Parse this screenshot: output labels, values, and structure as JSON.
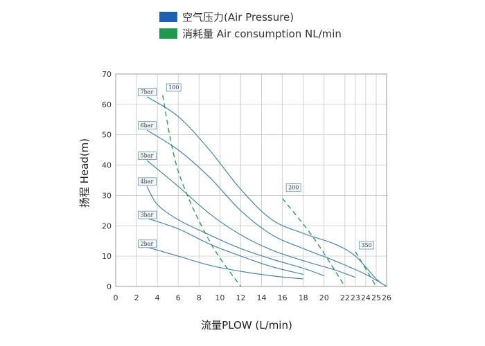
{
  "legend": [
    {
      "label": "空气压力(Air Pressure)",
      "color": "#2060b0"
    },
    {
      "label": "消耗量 Air consumption NL/min",
      "color": "#1e9a50"
    }
  ],
  "chart_data": {
    "type": "line",
    "xlabel": "流量PLOW (L/min)",
    "ylabel": "扬程 Head(m)",
    "xlim": [
      0,
      26
    ],
    "ylim": [
      0,
      70
    ],
    "xticks": [
      0,
      2,
      4,
      6,
      8,
      10,
      12,
      14,
      16,
      18,
      20,
      22,
      23,
      24,
      25,
      26
    ],
    "yticks": [
      0,
      10,
      20,
      30,
      40,
      50,
      60,
      70
    ],
    "grid": true,
    "series": [
      {
        "name": "7bar",
        "kind": "pressure",
        "color": "#4a86a8",
        "points": [
          [
            3,
            62.5
          ],
          [
            6,
            56
          ],
          [
            9,
            45
          ],
          [
            12,
            32
          ],
          [
            15,
            22
          ],
          [
            18,
            17.5
          ],
          [
            21,
            14
          ],
          [
            23,
            10
          ],
          [
            25,
            2.5
          ],
          [
            26,
            0
          ]
        ]
      },
      {
        "name": "6bar",
        "kind": "pressure",
        "color": "#4a86a8",
        "points": [
          [
            3,
            51.5
          ],
          [
            6,
            45
          ],
          [
            9,
            36
          ],
          [
            12,
            25
          ],
          [
            15,
            17
          ],
          [
            18,
            12.5
          ],
          [
            21,
            8.5
          ],
          [
            24,
            4
          ],
          [
            26,
            0
          ]
        ]
      },
      {
        "name": "5bar",
        "kind": "pressure",
        "color": "#4a86a8",
        "points": [
          [
            3,
            41.5
          ],
          [
            6,
            33
          ],
          [
            9,
            24
          ],
          [
            12,
            17
          ],
          [
            15,
            12
          ],
          [
            18,
            8.5
          ],
          [
            21,
            5.5
          ],
          [
            23,
            3
          ]
        ]
      },
      {
        "name": "4bar",
        "kind": "pressure",
        "color": "#4a86a8",
        "points": [
          [
            3,
            33
          ],
          [
            4,
            27
          ],
          [
            6,
            22
          ],
          [
            9,
            17
          ],
          [
            12,
            12.5
          ],
          [
            15,
            9
          ],
          [
            18,
            6
          ],
          [
            20,
            3.5
          ]
        ]
      },
      {
        "name": "3bar",
        "kind": "pressure",
        "color": "#4a86a8",
        "points": [
          [
            3,
            22.5
          ],
          [
            6,
            19
          ],
          [
            9,
            14
          ],
          [
            12,
            10
          ],
          [
            15,
            6.5
          ],
          [
            18,
            4
          ]
        ]
      },
      {
        "name": "2bar",
        "kind": "pressure",
        "color": "#4a86a8",
        "points": [
          [
            3,
            13
          ],
          [
            6,
            10
          ],
          [
            9,
            7
          ],
          [
            12,
            5
          ],
          [
            15,
            3.5
          ],
          [
            18,
            2.5
          ]
        ]
      },
      {
        "name": "100",
        "kind": "consumption",
        "color": "#2e9a5a",
        "points": [
          [
            4.5,
            63
          ],
          [
            6,
            38
          ],
          [
            9,
            15
          ],
          [
            12,
            0
          ]
        ]
      },
      {
        "name": "200",
        "kind": "consumption",
        "color": "#2e9a5a",
        "points": [
          [
            16,
            29
          ],
          [
            19,
            16
          ],
          [
            22,
            0
          ]
        ]
      },
      {
        "name": "350",
        "kind": "consumption",
        "color": "#2e9a5a",
        "points": [
          [
            23,
            11.5
          ],
          [
            25,
            0
          ]
        ]
      }
    ],
    "curve_labels": [
      {
        "text": "7bar",
        "x": 2.3,
        "y": 63.5
      },
      {
        "text": "6bar",
        "x": 2.3,
        "y": 52.5
      },
      {
        "text": "5bar",
        "x": 2.3,
        "y": 42.5
      },
      {
        "text": "4bar",
        "x": 2.3,
        "y": 34
      },
      {
        "text": "3bar",
        "x": 2.3,
        "y": 23
      },
      {
        "text": "2bar",
        "x": 2.3,
        "y": 13.5
      },
      {
        "text": "100",
        "x": 5.0,
        "y": 65
      },
      {
        "text": "200",
        "x": 16.5,
        "y": 32
      },
      {
        "text": "350",
        "x": 23.5,
        "y": 13
      }
    ]
  }
}
